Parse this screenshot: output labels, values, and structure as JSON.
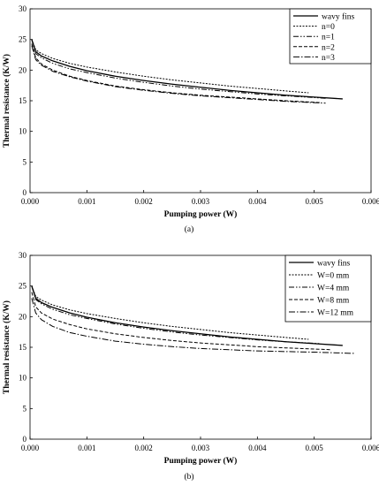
{
  "chart_data": [
    {
      "type": "line",
      "caption": "(a)",
      "xlabel": "Pumping power (W)",
      "ylabel": "Thermal resistance (K/W)",
      "xlim": [
        0,
        0.006
      ],
      "ylim": [
        0,
        30
      ],
      "x_ticks": [
        "0.000",
        "0.001",
        "0.002",
        "0.003",
        "0.004",
        "0.005",
        "0.006"
      ],
      "y_ticks": [
        "0",
        "5",
        "10",
        "15",
        "20",
        "25",
        "30"
      ],
      "legend_position": "top-right",
      "series": [
        {
          "name": "wavy fins",
          "dash": "solid",
          "width": 1.3,
          "x": [
            3e-05,
            0.0001,
            0.0002,
            0.0004,
            0.0007,
            0.001,
            0.0015,
            0.002,
            0.0025,
            0.003,
            0.0035,
            0.004,
            0.0045,
            0.005,
            0.0055
          ],
          "y": [
            25.0,
            23.0,
            22.3,
            21.5,
            20.6,
            19.9,
            19.0,
            18.3,
            17.7,
            17.2,
            16.7,
            16.3,
            15.9,
            15.6,
            15.3
          ]
        },
        {
          "name": "n=0",
          "dash": "2,1.5",
          "width": 1.0,
          "x": [
            3e-05,
            0.0001,
            0.0002,
            0.0004,
            0.0007,
            0.001,
            0.0015,
            0.002,
            0.0025,
            0.003,
            0.0035,
            0.004,
            0.0045,
            0.0049
          ],
          "y": [
            25.0,
            23.3,
            22.7,
            21.9,
            21.1,
            20.5,
            19.7,
            19.0,
            18.4,
            17.9,
            17.4,
            17.0,
            16.6,
            16.3
          ]
        },
        {
          "name": "n=1",
          "dash": "6,2,1.5,2,1.5,2",
          "width": 1.0,
          "x": [
            3e-05,
            0.0001,
            0.0002,
            0.0004,
            0.0007,
            0.001,
            0.0015,
            0.002,
            0.0025,
            0.003,
            0.0035,
            0.004,
            0.0045,
            0.0052
          ],
          "y": [
            25.0,
            22.7,
            22.0,
            21.1,
            20.2,
            19.6,
            18.7,
            18.0,
            17.4,
            16.9,
            16.5,
            16.1,
            15.8,
            15.4
          ]
        },
        {
          "name": "n=2",
          "dash": "4,2",
          "width": 1.0,
          "x": [
            3e-05,
            0.0001,
            0.0002,
            0.0004,
            0.0007,
            0.001,
            0.0015,
            0.002,
            0.0025,
            0.003,
            0.0035,
            0.004,
            0.0045,
            0.0051
          ],
          "y": [
            24.3,
            22.0,
            21.0,
            20.0,
            19.0,
            18.3,
            17.4,
            16.8,
            16.3,
            15.9,
            15.6,
            15.3,
            15.0,
            14.7
          ]
        },
        {
          "name": "n=3",
          "dash": "7,2,1.5,2",
          "width": 1.0,
          "x": [
            3e-05,
            0.0001,
            0.0002,
            0.0004,
            0.0007,
            0.001,
            0.0015,
            0.002,
            0.0025,
            0.003,
            0.0035,
            0.004,
            0.0045,
            0.0052
          ],
          "y": [
            24.0,
            21.7,
            20.8,
            19.8,
            18.9,
            18.2,
            17.3,
            16.7,
            16.2,
            15.8,
            15.5,
            15.2,
            14.9,
            14.6
          ]
        }
      ]
    },
    {
      "type": "line",
      "caption": "(b)",
      "xlabel": "Pumping power (W)",
      "ylabel": "Thermal resistance (K/W)",
      "xlim": [
        0,
        0.006
      ],
      "ylim": [
        0,
        30
      ],
      "x_ticks": [
        "0.000",
        "0.001",
        "0.002",
        "0.003",
        "0.004",
        "0.005",
        "0.006"
      ],
      "y_ticks": [
        "0",
        "5",
        "10",
        "15",
        "20",
        "25",
        "30"
      ],
      "legend_position": "top-right",
      "series": [
        {
          "name": "wavy fins",
          "dash": "solid",
          "width": 1.3,
          "x": [
            3e-05,
            0.0001,
            0.0002,
            0.0004,
            0.0007,
            0.001,
            0.0015,
            0.002,
            0.0025,
            0.003,
            0.0035,
            0.004,
            0.0045,
            0.005,
            0.0055
          ],
          "y": [
            25.0,
            23.0,
            22.3,
            21.5,
            20.6,
            19.9,
            19.0,
            18.3,
            17.7,
            17.2,
            16.7,
            16.3,
            15.9,
            15.6,
            15.3
          ]
        },
        {
          "name": "W=0 mm",
          "dash": "2,1.5",
          "width": 1.0,
          "x": [
            3e-05,
            0.0001,
            0.0002,
            0.0004,
            0.0007,
            0.001,
            0.0015,
            0.002,
            0.0025,
            0.003,
            0.0035,
            0.004,
            0.0045,
            0.0049
          ],
          "y": [
            25.0,
            23.3,
            22.7,
            21.9,
            21.1,
            20.5,
            19.7,
            19.0,
            18.4,
            17.9,
            17.4,
            17.0,
            16.6,
            16.3
          ]
        },
        {
          "name": "W=4 mm",
          "dash": "6,2,1.5,2,1.5,2",
          "width": 1.0,
          "x": [
            3e-05,
            0.0001,
            0.0002,
            0.0004,
            0.0007,
            0.001,
            0.0015,
            0.002,
            0.0025,
            0.003,
            0.0035,
            0.004,
            0.0045,
            0.0051
          ],
          "y": [
            25.0,
            22.8,
            22.1,
            21.2,
            20.3,
            19.7,
            18.8,
            18.1,
            17.5,
            17.0,
            16.6,
            16.2,
            15.9,
            15.6
          ]
        },
        {
          "name": "W=8 mm",
          "dash": "4,2",
          "width": 1.0,
          "x": [
            3e-05,
            0.0001,
            0.0002,
            0.0004,
            0.0007,
            0.001,
            0.0015,
            0.002,
            0.0025,
            0.003,
            0.0035,
            0.004,
            0.0045,
            0.0053
          ],
          "y": [
            24.0,
            21.6,
            20.6,
            19.6,
            18.7,
            18.0,
            17.2,
            16.6,
            16.1,
            15.7,
            15.4,
            15.1,
            14.9,
            14.6
          ]
        },
        {
          "name": "W=12 mm",
          "dash": "7,2,1.5,2",
          "width": 1.0,
          "x": [
            3e-05,
            0.0001,
            0.0002,
            0.0004,
            0.0007,
            0.001,
            0.0015,
            0.002,
            0.0025,
            0.003,
            0.0035,
            0.004,
            0.0045,
            0.005,
            0.0057
          ],
          "y": [
            23.0,
            20.6,
            19.5,
            18.4,
            17.4,
            16.8,
            16.0,
            15.5,
            15.1,
            14.8,
            14.6,
            14.4,
            14.3,
            14.2,
            14.0
          ]
        }
      ]
    }
  ]
}
